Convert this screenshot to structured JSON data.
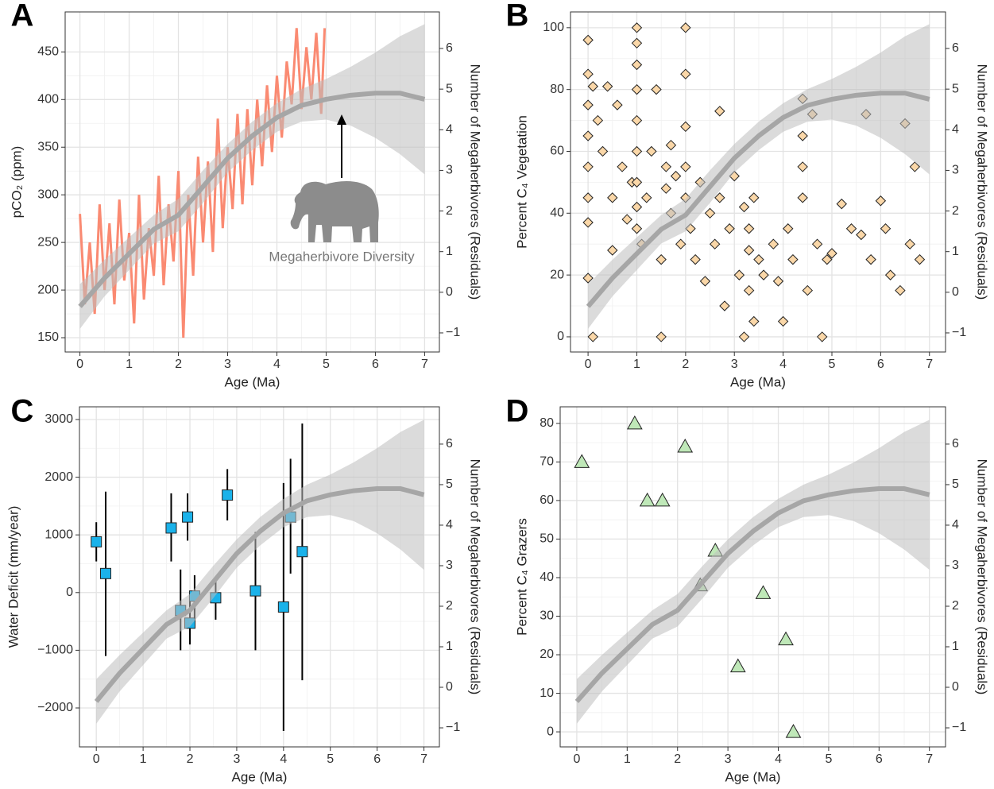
{
  "chart_data": [
    {
      "type": "line",
      "panel": "A",
      "xlabel": "Age (Ma)",
      "ylabel": "pCO₂ (ppm)",
      "y2label": "Number of Megaherbivores (Residuals)",
      "annotation": "Megaherbivore Diversity",
      "color": "#fa8a72",
      "grid": true,
      "xlim": [
        -0.3,
        7.3
      ],
      "ylim": [
        135,
        492
      ],
      "y2lim": [
        -1.47,
        6.9
      ],
      "xticks": [
        0,
        1,
        2,
        3,
        4,
        5,
        6,
        7
      ],
      "yticks": [
        150,
        200,
        250,
        300,
        350,
        400,
        450
      ],
      "y2ticks": [
        {
          "value": -1,
          "label": "−1"
        },
        0,
        1,
        2,
        3,
        4,
        5,
        6
      ],
      "x": [
        0,
        0.1,
        0.2,
        0.3,
        0.4,
        0.5,
        0.6,
        0.7,
        0.8,
        0.9,
        1,
        1.1,
        1.2,
        1.3,
        1.4,
        1.5,
        1.6,
        1.7,
        1.8,
        1.9,
        2,
        2.1,
        2.2,
        2.3,
        2.4,
        2.5,
        2.6,
        2.7,
        2.8,
        2.9,
        3,
        3.1,
        3.2,
        3.3,
        3.4,
        3.5,
        3.6,
        3.7,
        3.8,
        3.9,
        4,
        4.1,
        4.2,
        4.3,
        4.4,
        4.5,
        4.6,
        4.7,
        4.8,
        4.9,
        4.97
      ],
      "values": [
        280,
        185,
        250,
        175,
        290,
        200,
        270,
        185,
        295,
        210,
        260,
        165,
        300,
        190,
        265,
        215,
        320,
        205,
        290,
        230,
        325,
        150,
        300,
        215,
        340,
        250,
        335,
        240,
        380,
        265,
        350,
        285,
        385,
        290,
        390,
        310,
        400,
        330,
        415,
        345,
        425,
        360,
        440,
        395,
        475,
        390,
        455,
        400,
        470,
        385,
        475
      ],
      "fit": {
        "axis": "y2",
        "color": "#a6a6a6",
        "x": [
          0,
          0.5,
          1,
          1.5,
          2,
          2.5,
          3,
          3.5,
          4,
          4.5,
          5,
          5.5,
          6,
          6.5,
          7
        ],
        "values": [
          -0.35,
          0.35,
          0.95,
          1.55,
          1.9,
          2.6,
          3.3,
          3.85,
          4.3,
          4.6,
          4.75,
          4.85,
          4.9,
          4.9,
          4.75
        ],
        "lower": [
          -0.9,
          -0.1,
          0.55,
          1.2,
          1.5,
          2.2,
          2.95,
          3.5,
          3.95,
          4.2,
          4.25,
          4.1,
          3.8,
          3.4,
          2.9
        ],
        "upper": [
          0.2,
          0.8,
          1.35,
          1.9,
          2.3,
          3.0,
          3.65,
          4.2,
          4.65,
          5.0,
          5.25,
          5.55,
          5.9,
          6.3,
          6.6
        ]
      }
    },
    {
      "type": "scatter",
      "marker": "diamond",
      "panel": "B",
      "xlabel": "Age (Ma)",
      "ylabel": "Percent C₄ Vegetation",
      "y2label": "Number of Megaherbivores (Residuals)",
      "color": "#fad7a8",
      "grid": true,
      "xlim": [
        -0.36,
        7.33
      ],
      "ylim": [
        -4.9,
        105.1
      ],
      "y2lim": [
        -1.47,
        6.9
      ],
      "xticks": [
        0,
        1,
        2,
        3,
        4,
        5,
        6,
        7
      ],
      "yticks": [
        0,
        20,
        40,
        60,
        80,
        100
      ],
      "y2ticks": [
        {
          "value": -1,
          "label": "−1"
        },
        0,
        1,
        2,
        3,
        4,
        5,
        6
      ],
      "x": [
        0,
        0,
        0,
        0,
        0,
        0,
        0,
        0,
        0.1,
        0.1,
        0.2,
        0.3,
        0.4,
        0.5,
        0.5,
        0.6,
        0.7,
        0.8,
        0.9,
        1,
        1,
        1,
        1,
        1,
        1,
        1,
        1,
        1,
        1.1,
        1.2,
        1.3,
        1.4,
        1.5,
        1.5,
        1.6,
        1.6,
        1.7,
        1.7,
        1.8,
        1.9,
        2,
        2,
        2,
        2,
        2,
        2.1,
        2.2,
        2.3,
        2.4,
        2.5,
        2.6,
        2.7,
        2.7,
        2.8,
        2.9,
        3,
        3.1,
        3.2,
        3.2,
        3.3,
        3.3,
        3.3,
        3.4,
        3.4,
        3.5,
        3.6,
        3.8,
        3.9,
        4,
        4.1,
        4.2,
        4.4,
        4.4,
        4.4,
        4.4,
        4.5,
        4.6,
        4.7,
        4.8,
        4.9,
        5,
        5.2,
        5.4,
        5.6,
        5.7,
        5.8,
        6,
        6.1,
        6.2,
        6.4,
        6.5,
        6.6,
        6.7,
        6.8
      ],
      "values": [
        96,
        85,
        75,
        65,
        55,
        45,
        37,
        19,
        0,
        81,
        70,
        60,
        81,
        45,
        28,
        75,
        55,
        38,
        50,
        100,
        95,
        88,
        80,
        70,
        60,
        50,
        42,
        35,
        30,
        45,
        60,
        80,
        25,
        0,
        55,
        48,
        62,
        40,
        52,
        30,
        100,
        85,
        68,
        55,
        45,
        35,
        25,
        50,
        18,
        40,
        30,
        73,
        45,
        10,
        35,
        52,
        20,
        0,
        42,
        35,
        28,
        15,
        45,
        5,
        25,
        20,
        30,
        18,
        5,
        35,
        25,
        77,
        65,
        55,
        45,
        15,
        72,
        30,
        0,
        25,
        27,
        43,
        35,
        33,
        72,
        25,
        44,
        35,
        20,
        15,
        69,
        30,
        55,
        25
      ],
      "fit": {
        "axis": "y2",
        "color": "#a6a6a6",
        "x": [
          0,
          0.5,
          1,
          1.5,
          2,
          2.5,
          3,
          3.5,
          4,
          4.5,
          5,
          5.5,
          6,
          6.5,
          7
        ],
        "values": [
          -0.35,
          0.35,
          0.95,
          1.55,
          1.9,
          2.6,
          3.3,
          3.85,
          4.3,
          4.6,
          4.75,
          4.85,
          4.9,
          4.9,
          4.75
        ],
        "lower": [
          -0.9,
          -0.1,
          0.55,
          1.2,
          1.5,
          2.2,
          2.95,
          3.5,
          3.95,
          4.2,
          4.25,
          4.1,
          3.8,
          3.4,
          2.9
        ],
        "upper": [
          0.2,
          0.8,
          1.35,
          1.9,
          2.3,
          3.0,
          3.65,
          4.2,
          4.65,
          5.0,
          5.25,
          5.55,
          5.9,
          6.3,
          6.6
        ]
      }
    },
    {
      "type": "scatter",
      "marker": "square",
      "panel": "C",
      "xlabel": "Age (Ma)",
      "ylabel": "Water Deficit (mm/year)",
      "y2label": "Number of Megaherbivores (Residuals)",
      "color": "#1ab2ea",
      "grid": true,
      "xlim": [
        -0.36,
        7.33
      ],
      "ylim": [
        -2675,
        3220
      ],
      "y2lim": [
        -1.47,
        6.92
      ],
      "xticks": [
        0,
        1,
        2,
        3,
        4,
        5,
        6,
        7
      ],
      "yticks": [
        {
          "value": -2000,
          "label": "−2000"
        },
        {
          "value": -1000,
          "label": "−1000"
        },
        0,
        1000,
        2000,
        3000
      ],
      "y2ticks": [
        {
          "value": -1,
          "label": "−1"
        },
        0,
        1,
        2,
        3,
        4,
        5,
        6
      ],
      "x": [
        0,
        0.2,
        1.6,
        1.8,
        1.95,
        2.0,
        2.1,
        2.55,
        2.8,
        3.4,
        4.0,
        4.15,
        4.4
      ],
      "values": [
        880,
        330,
        1120,
        -310,
        1310,
        -530,
        -60,
        -90,
        1690,
        30,
        -250,
        1310,
        710
      ],
      "lower": [
        540,
        -1100,
        540,
        -1000,
        900,
        -900,
        -450,
        -470,
        1250,
        -1000,
        -2400,
        330,
        -1520
      ],
      "upper": [
        1220,
        1750,
        1720,
        400,
        1720,
        -150,
        300,
        280,
        2140,
        1050,
        1900,
        2320,
        2930
      ],
      "fit": {
        "axis": "y2",
        "color": "#a6a6a6",
        "x": [
          0,
          0.5,
          1,
          1.5,
          2,
          2.5,
          3,
          3.5,
          4,
          4.5,
          5,
          5.5,
          6,
          6.5,
          7
        ],
        "values": [
          -0.35,
          0.35,
          0.95,
          1.55,
          1.9,
          2.6,
          3.3,
          3.85,
          4.3,
          4.6,
          4.75,
          4.85,
          4.9,
          4.9,
          4.75
        ],
        "lower": [
          -0.9,
          -0.1,
          0.55,
          1.2,
          1.5,
          2.2,
          2.95,
          3.5,
          3.95,
          4.2,
          4.25,
          4.1,
          3.8,
          3.4,
          2.9
        ],
        "upper": [
          0.2,
          0.8,
          1.35,
          1.9,
          2.3,
          3.0,
          3.65,
          4.2,
          4.65,
          5.0,
          5.25,
          5.55,
          5.9,
          6.3,
          6.6
        ]
      }
    },
    {
      "type": "scatter",
      "marker": "triangle",
      "panel": "D",
      "xlabel": "Age (Ma)",
      "ylabel": "Percent C₄ Grazers",
      "y2label": "Number of Megaherbivores (Residuals)",
      "color": "#bfe8b8",
      "grid": true,
      "xlim": [
        -0.33,
        7.32
      ],
      "ylim": [
        -3.9,
        84.3
      ],
      "y2lim": [
        -1.47,
        6.92
      ],
      "xticks": [
        0,
        1,
        2,
        3,
        4,
        5,
        6,
        7
      ],
      "yticks": [
        0,
        10,
        20,
        30,
        40,
        50,
        60,
        70,
        80
      ],
      "y2ticks": [
        {
          "value": -1,
          "label": "−1"
        },
        0,
        1,
        2,
        3,
        4,
        5,
        6
      ],
      "x": [
        0.1,
        1.15,
        1.4,
        1.7,
        2.15,
        2.75,
        2.45,
        3.2,
        3.7,
        4.15,
        4.3
      ],
      "values": [
        70,
        80,
        60,
        60,
        74,
        47,
        38,
        17,
        36,
        24,
        0
      ],
      "fit": {
        "axis": "y2",
        "color": "#a6a6a6",
        "x": [
          0,
          0.5,
          1,
          1.5,
          2,
          2.5,
          3,
          3.5,
          4,
          4.5,
          5,
          5.5,
          6,
          6.5,
          7
        ],
        "values": [
          -0.35,
          0.35,
          0.95,
          1.55,
          1.9,
          2.6,
          3.3,
          3.85,
          4.3,
          4.6,
          4.75,
          4.85,
          4.9,
          4.9,
          4.75
        ],
        "lower": [
          -0.9,
          -0.1,
          0.55,
          1.2,
          1.5,
          2.2,
          2.95,
          3.5,
          3.95,
          4.2,
          4.25,
          4.1,
          3.8,
          3.4,
          2.9
        ],
        "upper": [
          0.2,
          0.8,
          1.35,
          1.9,
          2.3,
          3.0,
          3.65,
          4.2,
          4.65,
          5.0,
          5.25,
          5.55,
          5.9,
          6.3,
          6.6
        ]
      }
    }
  ]
}
